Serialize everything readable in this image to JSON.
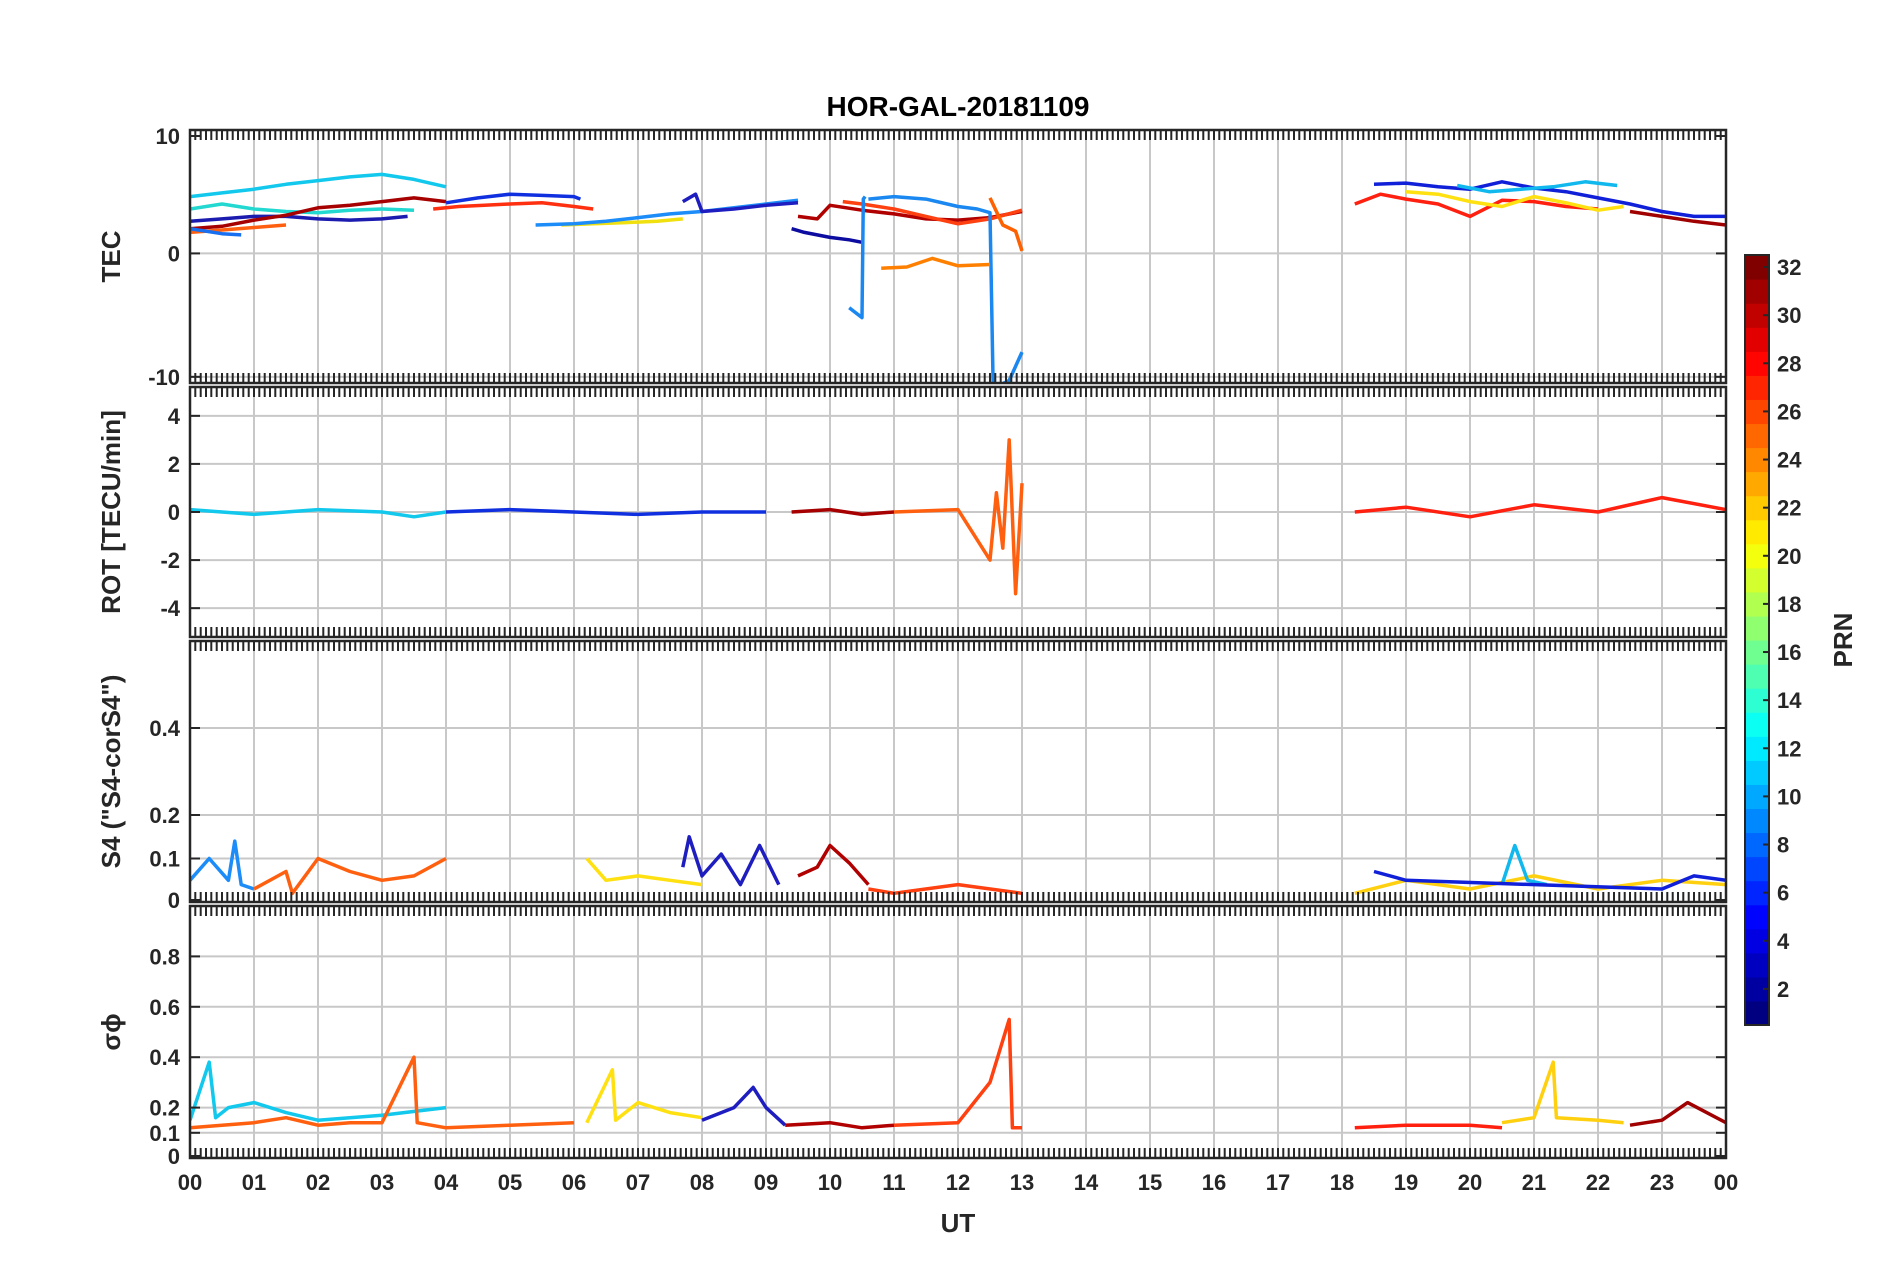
{
  "chart_data": {
    "type": "line",
    "title": "HOR-GAL-20181109",
    "xlabel": "UT",
    "x_tick_labels": [
      "00",
      "01",
      "02",
      "03",
      "04",
      "05",
      "06",
      "07",
      "08",
      "09",
      "10",
      "11",
      "12",
      "13",
      "14",
      "15",
      "16",
      "17",
      "18",
      "19",
      "20",
      "21",
      "22",
      "23",
      "00"
    ],
    "xlim": [
      0,
      24
    ],
    "grid": true,
    "colorbar": {
      "label": "PRN",
      "range": [
        1,
        32
      ],
      "ticks": [
        "2",
        "4",
        "6",
        "8",
        "10",
        "12",
        "14",
        "16",
        "18",
        "20",
        "22",
        "24",
        "26",
        "28",
        "30",
        "32"
      ],
      "colormap": "jet"
    },
    "panels": [
      {
        "id": "tec",
        "ylabel": "TEC",
        "ylim": [
          -10.5,
          10
        ],
        "yticks": [
          "10",
          "0",
          "-10"
        ],
        "series": [
          {
            "prn": 11,
            "color": "#12c8ec",
            "x": [
              0,
              0.5,
              1,
              1.5,
              2,
              2.5,
              3,
              3.5,
              4
            ],
            "y": [
              4.6,
              4.9,
              5.2,
              5.6,
              5.9,
              6.2,
              6.4,
              6.0,
              5.4
            ]
          },
          {
            "prn": 14,
            "color": "#22d8d0",
            "x": [
              0,
              0.5,
              1,
              1.5,
              2,
              2.5,
              3,
              3.5
            ],
            "y": [
              3.6,
              4.0,
              3.6,
              3.4,
              3.3,
              3.5,
              3.6,
              3.5
            ]
          },
          {
            "prn": 2,
            "color": "#1b1bb0",
            "x": [
              0,
              0.5,
              1,
              1.5,
              2,
              2.5,
              3,
              3.4
            ],
            "y": [
              2.6,
              2.8,
              3.0,
              3.0,
              2.8,
              2.7,
              2.8,
              3.0
            ]
          },
          {
            "prn": 31,
            "color": "#a60000",
            "x": [
              0,
              0.5,
              1,
              1.5,
              2,
              2.5,
              3,
              3.5,
              4
            ],
            "y": [
              2.0,
              2.2,
              2.7,
              3.1,
              3.7,
              3.9,
              4.2,
              4.5,
              4.2
            ]
          },
          {
            "prn": 25,
            "color": "#ff6010",
            "x": [
              0,
              0.5,
              1,
              1.5
            ],
            "y": [
              1.7,
              1.9,
              2.1,
              2.3
            ]
          },
          {
            "prn": 9,
            "color": "#1870f0",
            "x": [
              0,
              0.5,
              0.8
            ],
            "y": [
              2.0,
              1.6,
              1.5
            ]
          },
          {
            "prn": 27,
            "color": "#ff3010",
            "x": [
              3.8,
              4.2,
              4.6,
              5,
              5.5,
              6,
              6.3
            ],
            "y": [
              3.6,
              3.8,
              3.9,
              4.0,
              4.1,
              3.8,
              3.6
            ]
          },
          {
            "prn": 5,
            "color": "#1030e0",
            "x": [
              4.0,
              4.5,
              5,
              5.5,
              6,
              6.1
            ],
            "y": [
              4.1,
              4.5,
              4.8,
              4.7,
              4.6,
              4.4
            ]
          },
          {
            "prn": 20,
            "color": "#f0e010",
            "x": [
              5.8,
              6.3,
              6.8,
              7.3,
              7.7
            ],
            "y": [
              2.3,
              2.4,
              2.5,
              2.6,
              2.8
            ]
          },
          {
            "prn": 9,
            "color": "#1c8cf8",
            "x": [
              5.4,
              6,
              6.5,
              7,
              7.5,
              8,
              8.5,
              9,
              9.5
            ],
            "y": [
              2.3,
              2.4,
              2.6,
              2.9,
              3.2,
              3.4,
              3.7,
              4.0,
              4.3
            ]
          },
          {
            "prn": 3,
            "color": "#1e1ec0",
            "x": [
              7.7,
              7.9,
              8,
              8.5,
              9,
              9.5
            ],
            "y": [
              4.2,
              4.8,
              3.4,
              3.6,
              3.9,
              4.1
            ]
          },
          {
            "prn": 31,
            "color": "#b00000",
            "x": [
              9.5,
              9.8,
              10,
              10.5,
              11,
              11.5,
              12,
              12.5,
              13
            ],
            "y": [
              3.0,
              2.8,
              3.9,
              3.5,
              3.2,
              2.8,
              2.7,
              2.9,
              3.4
            ]
          },
          {
            "prn": 4,
            "color": "#0c0ca0",
            "x": [
              9.4,
              9.6,
              10,
              10.3,
              10.5
            ],
            "y": [
              2.0,
              1.7,
              1.3,
              1.1,
              0.9
            ]
          },
          {
            "prn": 26,
            "color": "#ff4010",
            "x": [
              10.2,
              10.5,
              11,
              11.5,
              12,
              12.5,
              13
            ],
            "y": [
              4.2,
              4.0,
              3.6,
              3.0,
              2.4,
              2.8,
              3.5
            ]
          },
          {
            "prn": 9,
            "color": "#1a88f0",
            "x": [
              10.3,
              10.5,
              10.52,
              10.55
            ],
            "y": [
              -4.4,
              -5.2,
              4.4,
              4.6
            ]
          },
          {
            "prn": 9,
            "color": "#1a88f0",
            "x": [
              10.6,
              11,
              11.5,
              12,
              12.3,
              12.5,
              12.55,
              12.6,
              12.8,
              13
            ],
            "y": [
              4.4,
              4.6,
              4.4,
              3.8,
              3.6,
              3.3,
              -11.0,
              -10.8,
              -10.3,
              -8.0
            ]
          },
          {
            "prn": 23,
            "color": "#ff8000",
            "x": [
              10.8,
              11.2,
              11.6,
              12,
              12.5
            ],
            "y": [
              -1.2,
              -1.1,
              -0.4,
              -1.0,
              -0.9
            ]
          },
          {
            "prn": 24,
            "color": "#ff6000",
            "x": [
              12.5,
              12.7,
              12.9,
              13
            ],
            "y": [
              4.5,
              2.3,
              1.8,
              0.2
            ]
          },
          {
            "prn": 27,
            "color": "#ff2010",
            "x": [
              18.2,
              18.6,
              19,
              19.5,
              20,
              20.5,
              21,
              21.5,
              22
            ],
            "y": [
              4.0,
              4.8,
              4.4,
              4.0,
              3.0,
              4.3,
              4.2,
              3.8,
              3.6
            ]
          },
          {
            "prn": 5,
            "color": "#1020d8",
            "x": [
              18.5,
              19,
              19.5,
              20,
              20.5,
              21,
              21.5,
              22,
              22.5,
              23,
              23.5,
              24
            ],
            "y": [
              5.6,
              5.7,
              5.4,
              5.2,
              5.8,
              5.3,
              5.0,
              4.5,
              4.0,
              3.4,
              3.0,
              3.0
            ]
          },
          {
            "prn": 11,
            "color": "#10b8ee",
            "x": [
              19.8,
              20.3,
              20.8,
              21.3,
              21.8,
              22.3
            ],
            "y": [
              5.5,
              5.0,
              5.2,
              5.4,
              5.8,
              5.5
            ]
          },
          {
            "prn": 20,
            "color": "#ffe010",
            "x": [
              19,
              19.5,
              20,
              20.5,
              21,
              21.5,
              22,
              22.4
            ],
            "y": [
              5.0,
              4.8,
              4.2,
              3.8,
              4.6,
              4.1,
              3.5,
              3.8
            ]
          },
          {
            "prn": 31,
            "color": "#a00000",
            "x": [
              22.5,
              23,
              23.5,
              24
            ],
            "y": [
              3.4,
              3.0,
              2.6,
              2.3
            ]
          }
        ]
      },
      {
        "id": "rot",
        "ylabel": "ROT [TECU/min]",
        "ylim": [
          -5.2,
          5.2
        ],
        "yticks": [
          "4",
          "2",
          "0",
          "-2",
          "-4"
        ],
        "series": [
          {
            "prn": 11,
            "color": "#12c8ec",
            "x": [
              0,
              1,
              2,
              3,
              3.5,
              4
            ],
            "y": [
              0.1,
              -0.1,
              0.1,
              0.0,
              -0.2,
              0.0
            ]
          },
          {
            "prn": 5,
            "color": "#1030e0",
            "x": [
              4,
              5,
              6,
              7,
              8,
              9
            ],
            "y": [
              0.0,
              0.1,
              0.0,
              -0.1,
              0.0,
              0.0
            ]
          },
          {
            "prn": 31,
            "color": "#a60000",
            "x": [
              9.4,
              10,
              10.5,
              11
            ],
            "y": [
              0.0,
              0.1,
              -0.1,
              0.0
            ]
          },
          {
            "prn": 25,
            "color": "#ff6010",
            "x": [
              11,
              12,
              12.5,
              12.6,
              12.7,
              12.8,
              12.9,
              13
            ],
            "y": [
              0.0,
              0.1,
              -2.0,
              0.8,
              -1.5,
              3.0,
              -3.4,
              1.2
            ]
          },
          {
            "prn": 27,
            "color": "#ff2010",
            "x": [
              18.2,
              19,
              20,
              21,
              22,
              23,
              24
            ],
            "y": [
              0.0,
              0.2,
              -0.2,
              0.3,
              0.0,
              0.6,
              0.1
            ]
          }
        ]
      },
      {
        "id": "s4",
        "ylabel": "S4 (\"S4-corS4\")",
        "ylim": [
          0,
          0.6
        ],
        "yticks": [
          "0.4",
          "0.2",
          "0.1",
          "0"
        ],
        "series": [
          {
            "prn": 9,
            "color": "#1c8cf8",
            "x": [
              0,
              0.3,
              0.6,
              0.7,
              0.8,
              1.0
            ],
            "y": [
              0.05,
              0.1,
              0.05,
              0.14,
              0.04,
              0.03
            ]
          },
          {
            "prn": 25,
            "color": "#ff6010",
            "x": [
              1,
              1.5,
              1.6,
              2,
              2.5,
              3,
              3.5,
              4
            ],
            "y": [
              0.03,
              0.07,
              0.02,
              0.1,
              0.07,
              0.05,
              0.06,
              0.1
            ]
          },
          {
            "prn": 20,
            "color": "#ffe010",
            "x": [
              6.2,
              6.5,
              7,
              7.5,
              8
            ],
            "y": [
              0.1,
              0.05,
              0.06,
              0.05,
              0.04
            ]
          },
          {
            "prn": 3,
            "color": "#1e1ec0",
            "x": [
              7.7,
              7.8,
              8,
              8.3,
              8.6,
              8.9,
              9.2
            ],
            "y": [
              0.08,
              0.15,
              0.06,
              0.11,
              0.04,
              0.13,
              0.04
            ]
          },
          {
            "prn": 31,
            "color": "#b00000",
            "x": [
              9.5,
              9.8,
              10,
              10.3,
              10.6
            ],
            "y": [
              0.06,
              0.08,
              0.13,
              0.09,
              0.04
            ]
          },
          {
            "prn": 26,
            "color": "#ff4010",
            "x": [
              10.6,
              11,
              12,
              13
            ],
            "y": [
              0.03,
              0.02,
              0.04,
              0.02
            ]
          },
          {
            "prn": 20,
            "color": "#ffd010",
            "x": [
              18.2,
              19,
              20,
              21,
              22,
              23,
              24
            ],
            "y": [
              0.02,
              0.05,
              0.03,
              0.06,
              0.03,
              0.05,
              0.04
            ]
          },
          {
            "prn": 11,
            "color": "#10b8ee",
            "x": [
              20.5,
              20.7,
              20.9,
              21.2
            ],
            "y": [
              0.04,
              0.13,
              0.05,
              0.04
            ]
          },
          {
            "prn": 5,
            "color": "#1020d8",
            "x": [
              18.5,
              19,
              23,
              23.5,
              24
            ],
            "y": [
              0.07,
              0.05,
              0.03,
              0.06,
              0.05
            ]
          }
        ]
      },
      {
        "id": "sigma",
        "ylabel": "σϕ",
        "ylim": [
          0,
          1.0
        ],
        "yticks": [
          "0.8",
          "0.6",
          "0.4",
          "0.2",
          "0.1",
          "0"
        ],
        "series": [
          {
            "prn": 11,
            "color": "#12c8ec",
            "x": [
              0,
              0.3,
              0.4,
              0.6,
              1,
              1.5,
              2,
              3,
              4
            ],
            "y": [
              0.15,
              0.38,
              0.16,
              0.2,
              0.22,
              0.18,
              0.15,
              0.17,
              0.2
            ]
          },
          {
            "prn": 25,
            "color": "#ff6010",
            "x": [
              0,
              0.5,
              1,
              1.5,
              2,
              2.5,
              3,
              3.5,
              3.55,
              4,
              5,
              6
            ],
            "y": [
              0.12,
              0.13,
              0.14,
              0.16,
              0.13,
              0.14,
              0.14,
              0.4,
              0.14,
              0.12,
              0.13,
              0.14
            ]
          },
          {
            "prn": 20,
            "color": "#ffe010",
            "x": [
              6.2,
              6.6,
              6.65,
              7,
              7.5,
              8
            ],
            "y": [
              0.14,
              0.35,
              0.15,
              0.22,
              0.18,
              0.16
            ]
          },
          {
            "prn": 3,
            "color": "#1e1ec0",
            "x": [
              8,
              8.5,
              8.8,
              9,
              9.3
            ],
            "y": [
              0.15,
              0.2,
              0.28,
              0.2,
              0.13
            ]
          },
          {
            "prn": 31,
            "color": "#b00000",
            "x": [
              9.3,
              10,
              10.5,
              11
            ],
            "y": [
              0.13,
              0.14,
              0.12,
              0.13
            ]
          },
          {
            "prn": 26,
            "color": "#ff4010",
            "x": [
              11,
              12,
              12.5,
              12.8,
              12.85,
              13
            ],
            "y": [
              0.13,
              0.14,
              0.3,
              0.55,
              0.12,
              0.12
            ]
          },
          {
            "prn": 27,
            "color": "#ff2010",
            "x": [
              18.2,
              19,
              20,
              20.5
            ],
            "y": [
              0.12,
              0.13,
              0.13,
              0.12
            ]
          },
          {
            "prn": 20,
            "color": "#ffd010",
            "x": [
              20.5,
              21,
              21.3,
              21.35,
              22,
              22.4
            ],
            "y": [
              0.14,
              0.16,
              0.38,
              0.16,
              0.15,
              0.14
            ]
          },
          {
            "prn": 31,
            "color": "#a00000",
            "x": [
              22.5,
              23,
              23.4,
              24
            ],
            "y": [
              0.13,
              0.15,
              0.22,
              0.14
            ]
          }
        ]
      }
    ]
  }
}
